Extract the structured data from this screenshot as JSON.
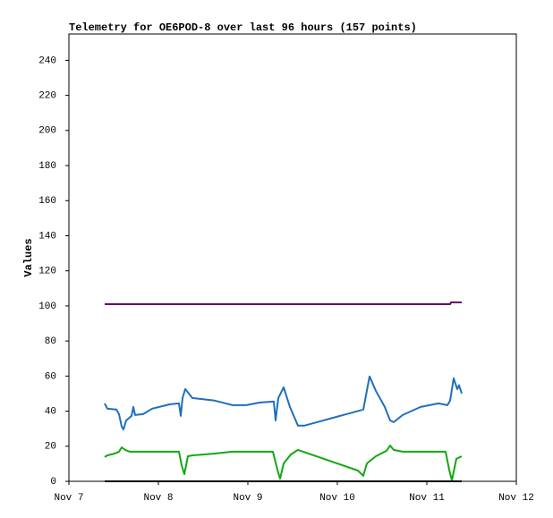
{
  "chart_data": {
    "type": "line",
    "title": "Telemetry for OE6POD-8 over last 96 hours (157 points)",
    "y_label": "Values",
    "xlim": [
      7,
      12
    ],
    "xticks": [
      {
        "value": 7,
        "label": "Nov 7"
      },
      {
        "value": 8,
        "label": "Nov 8"
      },
      {
        "value": 9,
        "label": "Nov 9"
      },
      {
        "value": 10,
        "label": "Nov 10"
      },
      {
        "value": 11,
        "label": "Nov 11"
      },
      {
        "value": 12,
        "label": "Nov 12"
      }
    ],
    "ylim": [
      0,
      255
    ],
    "yticks": [
      0,
      20,
      40,
      60,
      80,
      100,
      120,
      140,
      160,
      180,
      200,
      220,
      240
    ],
    "series": [
      {
        "color": "#660066",
        "x": [
          7.4,
          11.26,
          11.27,
          11.39
        ],
        "values": [
          101,
          101,
          102,
          102
        ]
      },
      {
        "color": "#1f6fbf",
        "x": [
          7.4,
          7.43,
          7.53,
          7.56,
          7.59,
          7.61,
          7.64,
          7.7,
          7.72,
          7.74,
          7.83,
          7.93,
          8.13,
          8.23,
          8.25,
          8.27,
          8.3,
          8.38,
          8.63,
          8.83,
          8.98,
          9.13,
          9.29,
          9.31,
          9.34,
          9.4,
          9.47,
          9.56,
          9.63,
          10.29,
          10.36,
          10.43,
          10.53,
          10.59,
          10.63,
          10.73,
          10.93,
          11.13,
          11.23,
          11.26,
          11.3,
          11.34,
          11.36,
          11.39
        ],
        "values": [
          44.4,
          41.4,
          40.9,
          38.3,
          31.2,
          29.6,
          34.7,
          37.3,
          42.4,
          37.8,
          38.3,
          41.4,
          43.9,
          44.4,
          37.3,
          47.5,
          52.6,
          47.5,
          46,
          43.4,
          43.4,
          44.9,
          45.5,
          34.7,
          47.5,
          53.6,
          42.4,
          31.7,
          31.7,
          40.9,
          59.8,
          51.6,
          42.4,
          34.7,
          33.7,
          37.8,
          42.4,
          44.4,
          43.4,
          46,
          58.7,
          52.6,
          54.7,
          50.1
        ]
      },
      {
        "color": "#12a812",
        "x": [
          7.4,
          7.43,
          7.51,
          7.56,
          7.59,
          7.63,
          7.68,
          8.23,
          8.26,
          8.29,
          8.33,
          8.38,
          8.63,
          8.83,
          9.28,
          9.33,
          9.36,
          9.4,
          9.48,
          9.56,
          10.23,
          10.29,
          10.33,
          10.43,
          10.55,
          10.59,
          10.63,
          10.73,
          11.21,
          11.25,
          11.28,
          11.33,
          11.39
        ],
        "values": [
          13.8,
          14.8,
          15.8,
          16.9,
          19.4,
          17.9,
          16.9,
          16.9,
          9.2,
          4.1,
          14.3,
          14.8,
          15.8,
          16.9,
          16.9,
          6.6,
          1.5,
          10.2,
          15.3,
          17.9,
          6.1,
          3.1,
          10.2,
          14.3,
          17.4,
          20.4,
          17.9,
          16.9,
          16.9,
          6.6,
          0.5,
          12.8,
          14.3
        ]
      },
      {
        "color": "#000000",
        "x": [
          7.4,
          11.39
        ],
        "values": [
          0,
          0
        ]
      }
    ]
  }
}
